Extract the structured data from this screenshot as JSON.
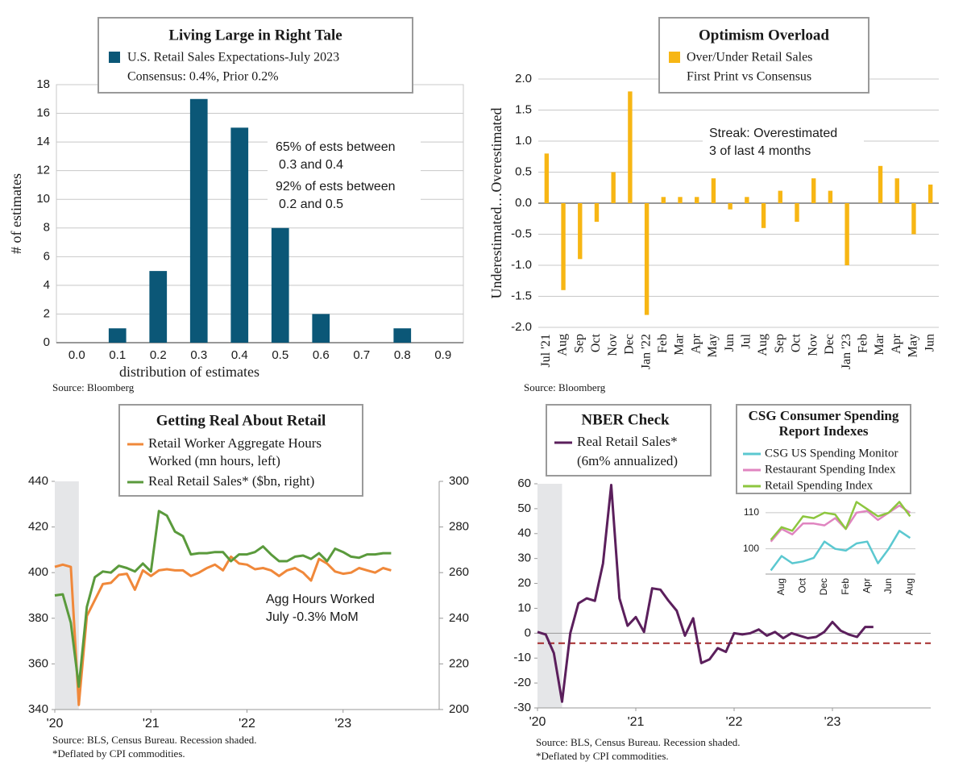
{
  "chart_data": [
    {
      "type": "bar",
      "title": "Living Large in Right Tale",
      "subtitle": "Consensus: 0.4%, Prior 0.2%",
      "categories": [
        "0.0",
        "0.1",
        "0.2",
        "0.3",
        "0.4",
        "0.5",
        "0.6",
        "0.7",
        "0.8",
        "0.9"
      ],
      "series": [
        {
          "name": "U.S. Retail Sales Expectations-July 2023",
          "color": "#0b5777",
          "values": [
            0,
            1,
            5,
            17,
            15,
            8,
            2,
            0,
            1,
            0
          ]
        }
      ],
      "ylim": [
        0,
        18
      ],
      "yticks": [
        0,
        2,
        4,
        6,
        8,
        10,
        12,
        14,
        16,
        18
      ],
      "grid": true,
      "ylabel": "# of estimates",
      "xlabel": "distribution of estimates",
      "annotations": [
        "65% of ests between",
        "0.3 and 0.4",
        "92% of ests between",
        "0.2 and 0.5"
      ],
      "source": "Source: Bloomberg"
    },
    {
      "type": "bar",
      "title": "Optimism Overload",
      "subtitle": "First Print vs Consensus",
      "categories": [
        "Jul '21",
        "Aug",
        "Sep",
        "Oct",
        "Nov",
        "Dec",
        "Jan '22",
        "Feb",
        "Mar",
        "Apr",
        "May",
        "Jun",
        "Jul",
        "Aug",
        "Sep",
        "Oct",
        "Nov",
        "Dec",
        "Jan '23",
        "Feb",
        "Mar",
        "Apr",
        "May",
        "Jun"
      ],
      "series": [
        {
          "name": "Over/Under Retail Sales",
          "color": "#f7b614",
          "values": [
            0.8,
            -1.4,
            -0.9,
            -0.3,
            0.5,
            1.8,
            -1.8,
            0.1,
            0.1,
            0.1,
            0.4,
            -0.1,
            0.1,
            -0.4,
            0.2,
            -0.3,
            0.4,
            0.2,
            -1.0,
            0,
            0.6,
            0.4,
            -0.5,
            0.3
          ]
        }
      ],
      "ylim": [
        -2,
        2
      ],
      "yticks": [
        {
          "value": -2,
          "label": "-2.0"
        },
        -1.5,
        {
          "value": -1,
          "label": "-1.0"
        },
        -0.5,
        {
          "value": 0,
          "label": "0.0"
        },
        0.5,
        {
          "value": 1,
          "label": "1.0"
        },
        1.5,
        {
          "value": 2,
          "label": "2.0"
        }
      ],
      "grid": true,
      "ylabel": "Underestimated…Overestimated",
      "annotations": [
        "Streak: Overestimated",
        "3 of last 4 months"
      ],
      "source": "Source: Bloomberg"
    },
    {
      "type": "line",
      "title": "Getting Real About Retail",
      "x": [
        0,
        1,
        2,
        3,
        4,
        5,
        6,
        7,
        8,
        9,
        10,
        11,
        12,
        13,
        14,
        15,
        16,
        17,
        18,
        19,
        20,
        21,
        22,
        23,
        24,
        25,
        26,
        27,
        28,
        29,
        30,
        31,
        32,
        33,
        34,
        35,
        36,
        37,
        38,
        39,
        40,
        41,
        42
      ],
      "xlim": [
        0,
        48
      ],
      "xticks": [
        {
          "value": 0,
          "label": "'20"
        },
        {
          "value": 12,
          "label": "'21"
        },
        {
          "value": 24,
          "label": "'22"
        },
        {
          "value": 36,
          "label": "'23"
        }
      ],
      "series": [
        {
          "name": "Retail Worker Aggregate Hours Worked (mn hours, left)",
          "color": "#f0883a",
          "values": [
            402.5,
            403.5,
            402.5,
            342,
            381,
            388,
            395,
            395.5,
            399,
            399.5,
            392.5,
            401,
            398.5,
            401,
            401.5,
            401,
            401,
            398.5,
            400,
            402,
            403.5,
            401,
            407,
            404,
            403.5,
            401.5,
            402,
            401,
            398.5,
            401,
            402,
            400,
            396.5,
            406,
            404,
            400.5,
            399.5,
            400,
            402,
            401,
            400,
            402,
            401
          ]
        },
        {
          "name": "Real Retail Sales* ($bn, right)",
          "color": "#5a9a3c",
          "axis": "y2",
          "values": [
            250,
            250.5,
            238,
            210,
            245,
            258,
            260.5,
            260,
            263,
            262,
            260.5,
            264,
            260.5,
            287,
            285,
            278,
            276,
            268,
            268.5,
            268.5,
            269,
            269,
            265,
            268,
            268,
            269,
            271.5,
            268,
            265,
            265,
            267,
            267.5,
            266,
            268.5,
            265,
            270.5,
            269,
            267,
            266.5,
            268,
            268,
            268.5,
            268.5
          ]
        }
      ],
      "ylim": [
        340,
        440
      ],
      "yticks": [
        340,
        360,
        380,
        400,
        420,
        440
      ],
      "y2lim": [
        200,
        300
      ],
      "y2ticks": [
        200,
        220,
        240,
        260,
        280,
        300
      ],
      "grid": false,
      "recession": [
        0,
        3
      ],
      "annotations": [
        "Agg Hours Worked",
        "July -0.3% MoM"
      ],
      "source": "Source: BLS, Census Bureau. Recession shaded.",
      "note": "*Deflated by CPI commodities."
    },
    {
      "type": "line",
      "title": "NBER Check",
      "subtitle": "(6m% annualized)",
      "x": [
        0,
        1,
        2,
        3,
        4,
        5,
        6,
        7,
        8,
        9,
        10,
        11,
        12,
        13,
        14,
        15,
        16,
        17,
        18,
        19,
        20,
        21,
        22,
        23,
        24,
        25,
        26,
        27,
        28,
        29,
        30,
        31,
        32,
        33,
        34,
        35,
        36,
        37,
        38,
        39,
        40,
        41
      ],
      "xlim": [
        0,
        48
      ],
      "xticks": [
        {
          "value": 0,
          "label": "'20"
        },
        {
          "value": 12,
          "label": "'21"
        },
        {
          "value": 24,
          "label": "'22"
        },
        {
          "value": 36,
          "label": "'23"
        }
      ],
      "series": [
        {
          "name": "Real Retail Sales*",
          "color": "#5b1f5c",
          "values": [
            0.5,
            -0.5,
            -8,
            -27.5,
            0,
            12,
            14,
            13,
            28,
            59.5,
            14,
            3,
            6.5,
            0.5,
            18,
            17.5,
            13,
            9,
            -1,
            6,
            -12,
            -10.5,
            -6,
            -7.5,
            0,
            -0.5,
            0,
            1.5,
            -1,
            0.5,
            -2,
            0,
            -1,
            -2,
            -1.5,
            0.5,
            4.5,
            1,
            -0.5,
            -1.5,
            2.5,
            2.5
          ]
        }
      ],
      "ylim": [
        -30,
        60
      ],
      "yticks": [
        -30,
        -20,
        -10,
        0,
        10,
        20,
        30,
        40,
        50,
        60
      ],
      "grid": false,
      "recession": [
        0,
        3
      ],
      "reference_line": -4,
      "reference_color": "#a52a2a",
      "source": "Source: BLS, Census Bureau. Recession shaded.",
      "note": "*Deflated by CPI commodities."
    },
    {
      "type": "line",
      "title": "CSG Consumer Spending Report Indexes",
      "categories": [
        null,
        "Aug",
        null,
        "Oct",
        null,
        "Dec",
        null,
        "Feb",
        null,
        "Apr",
        null,
        "Jun",
        null,
        "Aug"
      ],
      "series": [
        {
          "name": "CSG US Spending Monitor",
          "color": "#5bc8d0",
          "values": [
            94,
            98,
            96,
            96.5,
            97.5,
            102,
            100,
            99.5,
            101.5,
            102,
            96,
            100,
            105,
            103
          ]
        },
        {
          "name": "Restaurant Spending Index",
          "color": "#e085c0",
          "values": [
            102,
            105.5,
            104,
            107,
            107,
            106.5,
            108.5,
            105.5,
            110,
            110.5,
            108,
            110,
            112,
            110
          ]
        },
        {
          "name": "Retail Spending Index",
          "color": "#8dc63f",
          "values": [
            102.5,
            106,
            105,
            109,
            108.5,
            110,
            109.5,
            105.5,
            113,
            111,
            109,
            110,
            113,
            109
          ]
        }
      ],
      "ylim": [
        93,
        114
      ],
      "yticks": [
        100,
        110
      ],
      "grid": true
    }
  ]
}
